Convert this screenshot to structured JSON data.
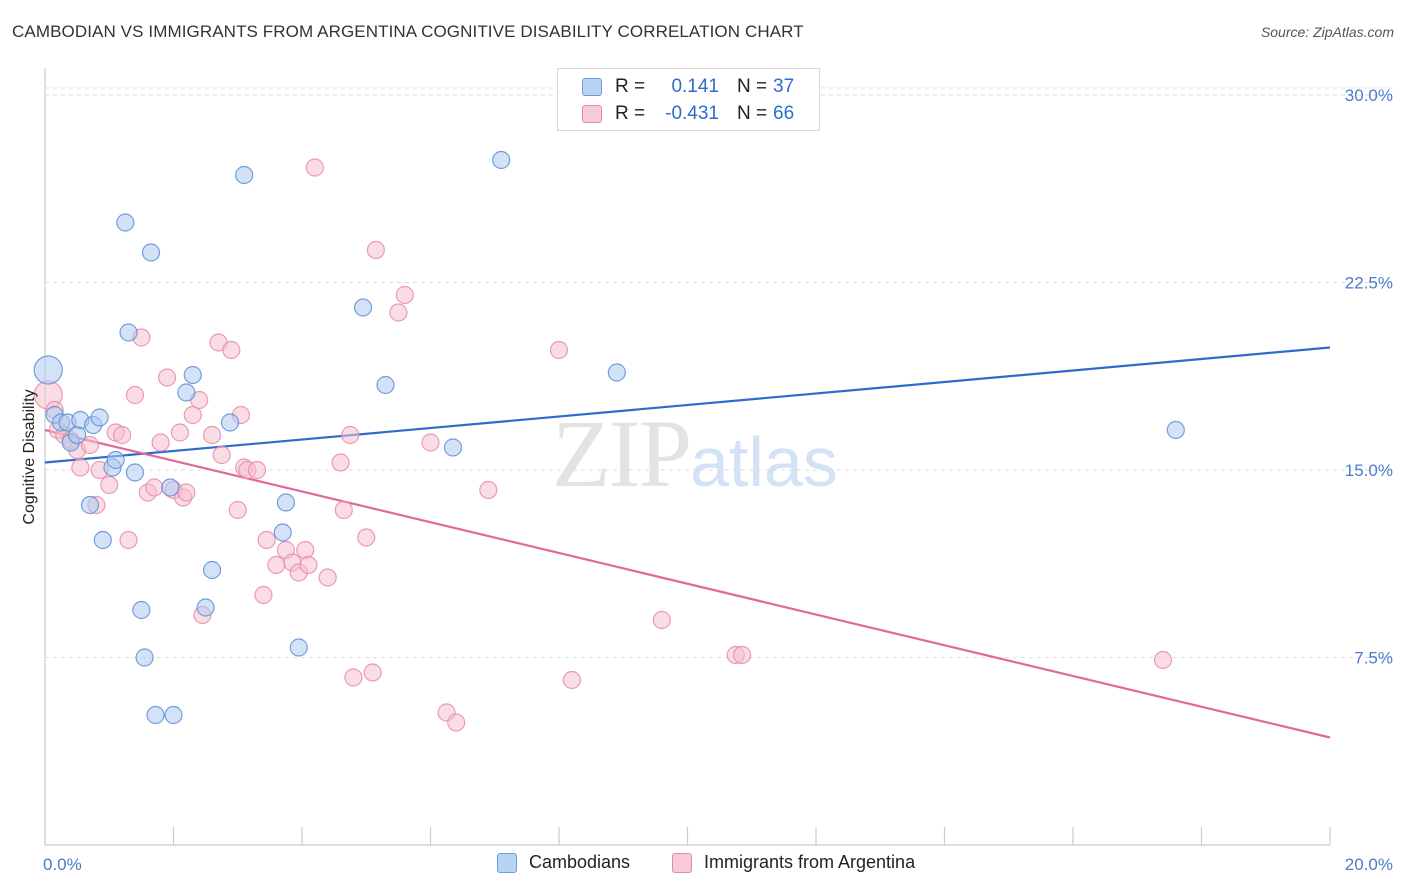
{
  "title": "CAMBODIAN VS IMMIGRANTS FROM ARGENTINA COGNITIVE DISABILITY CORRELATION CHART",
  "source": "Source: ZipAtlas.com",
  "watermark": {
    "zip": "ZIP",
    "atlas": "atlas"
  },
  "legend": {
    "series1": {
      "r_label": "R =",
      "r_value": "0.141",
      "n_label": "N =",
      "n_value": "37"
    },
    "series2": {
      "r_label": "R =",
      "r_value": "-0.431",
      "n_label": "N =",
      "n_value": "66"
    }
  },
  "colors": {
    "blue_fill": "#aecbf0",
    "blue_stroke": "#5b8fd6",
    "blue_line": "#2f6bcc",
    "pink_fill": "#f5c0d0",
    "pink_stroke": "#e889a8",
    "pink_line": "#e0699a",
    "grid": "#dddddd",
    "tick_text": "#4a7cc9"
  },
  "chart_data": {
    "type": "scatter",
    "title": "CAMBODIAN VS IMMIGRANTS FROM ARGENTINA COGNITIVE DISABILITY CORRELATION CHART",
    "xlabel": "",
    "ylabel": "Cognitive Disability",
    "xlim": [
      0,
      20
    ],
    "ylim": [
      0,
      31
    ],
    "x_tick_labels": [
      "0.0%",
      "20.0%"
    ],
    "y_ticks": [
      7.5,
      15.0,
      22.5,
      30.0
    ],
    "y_tick_labels": [
      "7.5%",
      "15.0%",
      "22.5%",
      "30.0%"
    ],
    "grid": true,
    "legend_position": "bottom",
    "series": [
      {
        "name": "Cambodians",
        "r": 0.141,
        "n": 37,
        "trend": [
          [
            0,
            15.3
          ],
          [
            20,
            19.9
          ]
        ],
        "points": [
          [
            0.05,
            19.0,
            2
          ],
          [
            0.15,
            17.2,
            1
          ],
          [
            0.25,
            16.9,
            1
          ],
          [
            0.35,
            16.9,
            1
          ],
          [
            0.4,
            16.1,
            1
          ],
          [
            0.5,
            16.4,
            1
          ],
          [
            0.55,
            17.0,
            1
          ],
          [
            0.7,
            13.6,
            1
          ],
          [
            0.75,
            16.8,
            1
          ],
          [
            0.85,
            17.1,
            1
          ],
          [
            0.9,
            12.2,
            1
          ],
          [
            1.05,
            15.1,
            1
          ],
          [
            1.1,
            15.4,
            1
          ],
          [
            1.25,
            24.9,
            1
          ],
          [
            1.3,
            20.5,
            1
          ],
          [
            1.4,
            14.9,
            1
          ],
          [
            1.5,
            9.4,
            1
          ],
          [
            1.55,
            7.5,
            1
          ],
          [
            1.65,
            23.7,
            1
          ],
          [
            1.72,
            5.2,
            1
          ],
          [
            1.95,
            14.3,
            1
          ],
          [
            2.0,
            5.2,
            1
          ],
          [
            2.2,
            18.1,
            1
          ],
          [
            2.3,
            18.8,
            1
          ],
          [
            2.5,
            9.5,
            1
          ],
          [
            2.6,
            11.0,
            1
          ],
          [
            2.88,
            16.9,
            1
          ],
          [
            3.1,
            26.8,
            1
          ],
          [
            3.7,
            12.5,
            1
          ],
          [
            3.75,
            13.7,
            1
          ],
          [
            3.95,
            7.9,
            1
          ],
          [
            4.95,
            21.5,
            1
          ],
          [
            5.3,
            18.4,
            1
          ],
          [
            6.35,
            15.9,
            1
          ],
          [
            7.1,
            27.4,
            1
          ],
          [
            8.9,
            18.9,
            1
          ],
          [
            17.6,
            16.6,
            1
          ]
        ]
      },
      {
        "name": "Immigrants from Argentina",
        "r": -0.431,
        "n": 66,
        "trend": [
          [
            0,
            16.6
          ],
          [
            20,
            4.3
          ]
        ],
        "points": [
          [
            0.05,
            18.0,
            2
          ],
          [
            0.15,
            17.4,
            1
          ],
          [
            0.2,
            16.6,
            1
          ],
          [
            0.3,
            16.4,
            1
          ],
          [
            0.4,
            16.2,
            1
          ],
          [
            0.5,
            15.8,
            1
          ],
          [
            0.55,
            15.1,
            1
          ],
          [
            0.7,
            16.0,
            1
          ],
          [
            0.8,
            13.6,
            1
          ],
          [
            0.85,
            15.0,
            1
          ],
          [
            1.0,
            14.4,
            1
          ],
          [
            1.1,
            16.5,
            1
          ],
          [
            1.2,
            16.4,
            1
          ],
          [
            1.3,
            12.2,
            1
          ],
          [
            1.4,
            18.0,
            1
          ],
          [
            1.5,
            20.3,
            1
          ],
          [
            1.6,
            14.1,
            1
          ],
          [
            1.7,
            14.3,
            1
          ],
          [
            1.8,
            16.1,
            1
          ],
          [
            1.9,
            18.7,
            1
          ],
          [
            2.0,
            14.2,
            1
          ],
          [
            2.1,
            16.5,
            1
          ],
          [
            2.15,
            13.9,
            1
          ],
          [
            2.2,
            14.1,
            1
          ],
          [
            2.3,
            17.2,
            1
          ],
          [
            2.4,
            17.8,
            1
          ],
          [
            2.45,
            9.2,
            1
          ],
          [
            2.6,
            16.4,
            1
          ],
          [
            2.7,
            20.1,
            1
          ],
          [
            2.75,
            15.6,
            1
          ],
          [
            2.9,
            19.8,
            1
          ],
          [
            3.0,
            13.4,
            1
          ],
          [
            3.05,
            17.2,
            1
          ],
          [
            3.1,
            15.1,
            1
          ],
          [
            3.15,
            15.0,
            1
          ],
          [
            3.3,
            15.0,
            1
          ],
          [
            3.4,
            10.0,
            1
          ],
          [
            3.45,
            12.2,
            1
          ],
          [
            3.6,
            11.2,
            1
          ],
          [
            3.75,
            11.8,
            1
          ],
          [
            3.85,
            11.3,
            1
          ],
          [
            3.95,
            10.9,
            1
          ],
          [
            4.05,
            11.8,
            1
          ],
          [
            4.1,
            11.2,
            1
          ],
          [
            4.2,
            27.1,
            1
          ],
          [
            4.4,
            10.7,
            1
          ],
          [
            4.6,
            15.3,
            1
          ],
          [
            4.65,
            13.4,
            1
          ],
          [
            4.75,
            16.4,
            1
          ],
          [
            4.8,
            6.7,
            1
          ],
          [
            5.0,
            12.3,
            1
          ],
          [
            5.1,
            6.9,
            1
          ],
          [
            5.15,
            23.8,
            1
          ],
          [
            5.5,
            21.3,
            1
          ],
          [
            5.6,
            22.0,
            1
          ],
          [
            6.0,
            16.1,
            1
          ],
          [
            6.25,
            5.3,
            1
          ],
          [
            6.4,
            4.9,
            1
          ],
          [
            6.9,
            14.2,
            1
          ],
          [
            8.0,
            19.8,
            1
          ],
          [
            8.2,
            6.6,
            1
          ],
          [
            9.6,
            9.0,
            1
          ],
          [
            10.75,
            7.6,
            1
          ],
          [
            10.85,
            7.6,
            1
          ],
          [
            17.4,
            7.4,
            1
          ]
        ]
      }
    ]
  }
}
